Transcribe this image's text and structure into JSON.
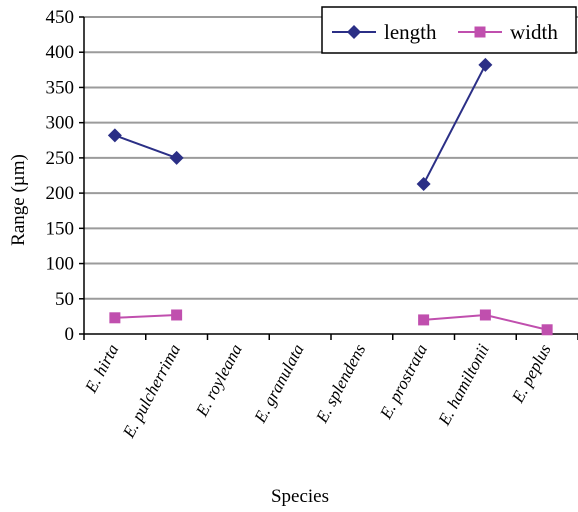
{
  "chart_data": {
    "type": "line",
    "categories": [
      "E. hirta",
      "E. pulcherrima",
      "E. royleana",
      "E. granulata",
      "E. splendens",
      "E. prostrata",
      "E. hamiltonii",
      "E. peplus"
    ],
    "series": [
      {
        "name": "length",
        "color": "#2b2f86",
        "marker": "diamond",
        "values": [
          282,
          250,
          null,
          null,
          null,
          213,
          382,
          null
        ]
      },
      {
        "name": "width",
        "color": "#c04fae",
        "marker": "square",
        "values": [
          23,
          27,
          null,
          null,
          null,
          20,
          27,
          6
        ]
      }
    ],
    "xlabel": "Species",
    "ylabel": "Range (µm)",
    "ylim": [
      0,
      450
    ],
    "yticks": [
      0,
      50,
      100,
      150,
      200,
      250,
      300,
      350,
      400,
      450
    ],
    "grid": true,
    "legend_position": "top-right"
  }
}
